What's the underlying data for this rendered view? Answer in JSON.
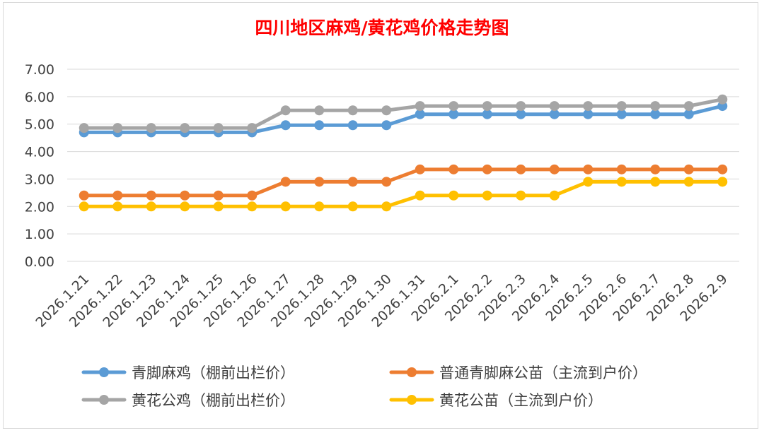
{
  "chart_data": {
    "type": "line",
    "title": "四川地区麻鸡/黄花鸡价格走势图",
    "xlabel": "",
    "ylabel": "",
    "ylim": [
      0,
      7
    ],
    "y_ticks": [
      "0.00",
      "1.00",
      "2.00",
      "3.00",
      "4.00",
      "5.00",
      "6.00",
      "7.00"
    ],
    "grid": true,
    "legend_position": "bottom",
    "categories": [
      "2026.1.21",
      "2026.1.22",
      "2026.1.23",
      "2026.1.24",
      "2026.1.25",
      "2026.1.26",
      "2026.1.27",
      "2026.1.28",
      "2026.1.29",
      "2026.1.30",
      "2026.1.31",
      "2026.2.1",
      "2026.2.2",
      "2026.2.3",
      "2026.2.4",
      "2026.2.5",
      "2026.2.6",
      "2026.2.7",
      "2026.2.8",
      "2026.2.9"
    ],
    "series": [
      {
        "name": "青脚麻鸡（棚前出栏价）",
        "color": "#5b9bd5",
        "values": [
          4.7,
          4.7,
          4.7,
          4.7,
          4.7,
          4.7,
          4.96,
          4.96,
          4.96,
          4.96,
          5.36,
          5.36,
          5.36,
          5.36,
          5.36,
          5.36,
          5.36,
          5.36,
          5.36,
          5.66
        ]
      },
      {
        "name": "普通青脚麻公苗（主流到户价）",
        "color": "#ed7d31",
        "values": [
          2.4,
          2.4,
          2.4,
          2.4,
          2.4,
          2.4,
          2.9,
          2.9,
          2.9,
          2.9,
          3.35,
          3.35,
          3.35,
          3.35,
          3.35,
          3.35,
          3.35,
          3.35,
          3.35,
          3.35
        ]
      },
      {
        "name": "黄花公鸡（棚前出栏价）",
        "color": "#a5a5a5",
        "values": [
          4.86,
          4.86,
          4.86,
          4.86,
          4.86,
          4.86,
          5.5,
          5.5,
          5.5,
          5.5,
          5.66,
          5.66,
          5.66,
          5.66,
          5.66,
          5.66,
          5.66,
          5.66,
          5.66,
          5.9
        ]
      },
      {
        "name": "黄花公苗（主流到户价）",
        "color": "#ffc000",
        "values": [
          2.0,
          2.0,
          2.0,
          2.0,
          2.0,
          2.0,
          2.0,
          2.0,
          2.0,
          2.0,
          2.4,
          2.4,
          2.4,
          2.4,
          2.4,
          2.9,
          2.9,
          2.9,
          2.9,
          2.9
        ]
      }
    ]
  }
}
